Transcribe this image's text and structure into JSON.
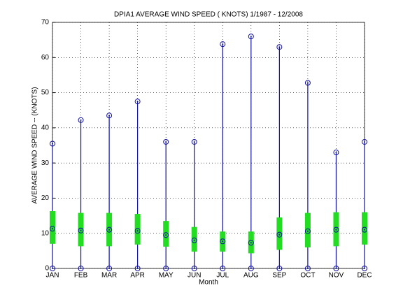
{
  "chart_data": {
    "type": "range",
    "title": "DPIA1  AVERAGE WIND SPEED ( KNOTS) 1/1987 - 12/2008",
    "xlabel": "Month",
    "ylabel": "AVERAGE WIND SPEED -- (KNOTS)",
    "categories": [
      "JAN",
      "FEB",
      "MAR",
      "APR",
      "MAY",
      "JUN",
      "JUL",
      "AUG",
      "SEP",
      "OCT",
      "NOV",
      "DEC"
    ],
    "max": [
      35.5,
      42.2,
      43.5,
      47.5,
      36,
      36,
      63.8,
      66,
      63,
      52.8,
      33,
      36
    ],
    "mean": [
      11.3,
      10.8,
      11,
      10.7,
      9.5,
      8,
      7.7,
      7.3,
      9.6,
      10.6,
      11,
      11
    ],
    "min": [
      0,
      0,
      0,
      0,
      0,
      0,
      0,
      0,
      0,
      0,
      0,
      0
    ],
    "low": [
      7,
      6.3,
      6.3,
      6.8,
      6.2,
      4.8,
      4.8,
      4.3,
      5.3,
      6,
      6.3,
      6.8
    ],
    "high": [
      16.3,
      15.8,
      15.8,
      15.5,
      13.5,
      11.8,
      10.5,
      10.5,
      14.5,
      15.8,
      16,
      16
    ],
    "line_color": "#1010a0",
    "band_color": "#22dd22",
    "ylim": [
      0,
      70
    ],
    "yticks": [
      0,
      10,
      20,
      30,
      40,
      50,
      60,
      70
    ],
    "grid": true
  }
}
